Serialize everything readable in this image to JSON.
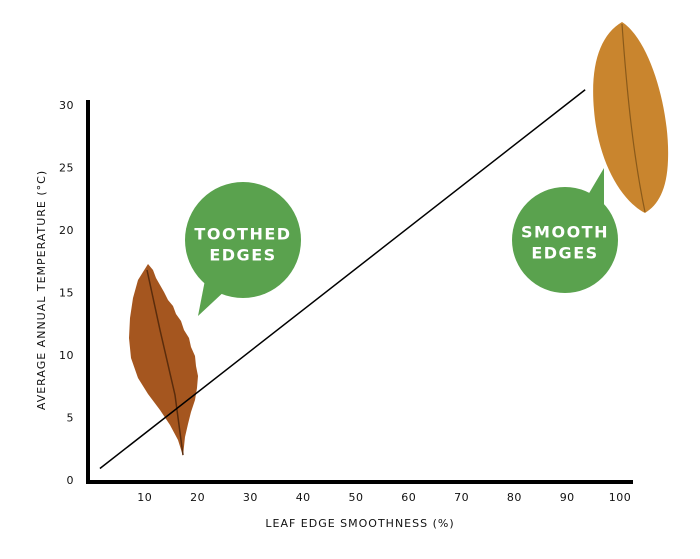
{
  "chart_data": {
    "type": "line",
    "x_label": "LEAF EDGE SMOOTHNESS (%)",
    "y_label": "AVERAGE ANNUAL TEMPERATURE (°C)",
    "annotations": [
      [
        "TOOTHED",
        "EDGES"
      ],
      [
        "SMOOTH",
        "EDGES"
      ]
    ],
    "x": [
      1.5,
      93.4
    ],
    "series": [
      {
        "color": "#000000",
        "values": [
          1,
          31.3
        ]
      }
    ],
    "xlim": [
      0,
      102
    ],
    "ylim": [
      0,
      31
    ],
    "xticks": [
      10,
      20,
      30,
      40,
      50,
      60,
      70,
      80,
      90,
      100
    ],
    "yticks": [
      0,
      5,
      10,
      15,
      20,
      25,
      30
    ],
    "grid": false
  }
}
